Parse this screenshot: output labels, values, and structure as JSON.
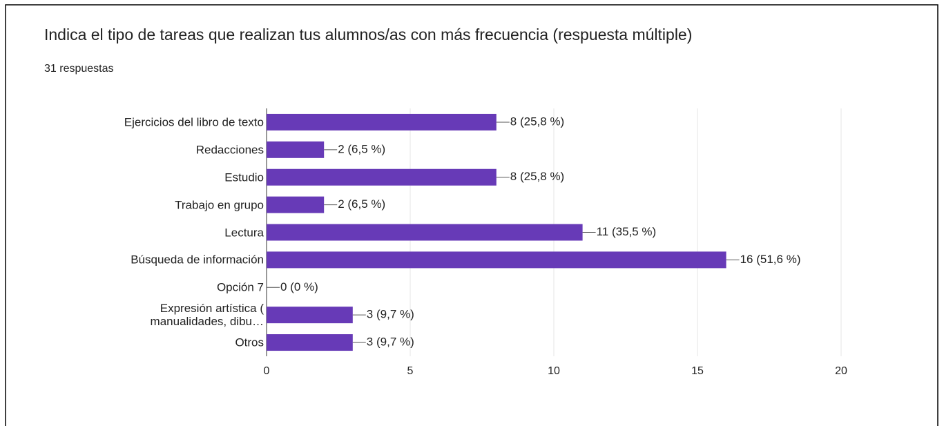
{
  "chart_data": {
    "type": "bar",
    "orientation": "horizontal",
    "title": "Indica el tipo de tareas que realizan tus alumnos/as con más frecuencia (respuesta múltiple)",
    "subtitle": "31 respuestas",
    "categories": [
      "Ejercicios del libro de texto",
      "Redacciones",
      "Estudio",
      "Trabajo en grupo",
      "Lectura",
      "Búsqueda de información",
      "Opción 7",
      "Expresión artística (\nmanualidades, dibu…",
      "Otros"
    ],
    "values": [
      8,
      2,
      8,
      2,
      11,
      16,
      0,
      3,
      3
    ],
    "value_labels": [
      "8 (25,8 %)",
      "2 (6,5 %)",
      "8 (25,8 %)",
      "2 (6,5 %)",
      "11 (35,5 %)",
      "16 (51,6 %)",
      "0 (0 %)",
      "3 (9,7 %)",
      "3 (9,7 %)"
    ],
    "color": "#673ab7",
    "xlim": [
      0,
      20
    ],
    "xticks": [
      0,
      5,
      10,
      15,
      20
    ],
    "grid": true
  }
}
